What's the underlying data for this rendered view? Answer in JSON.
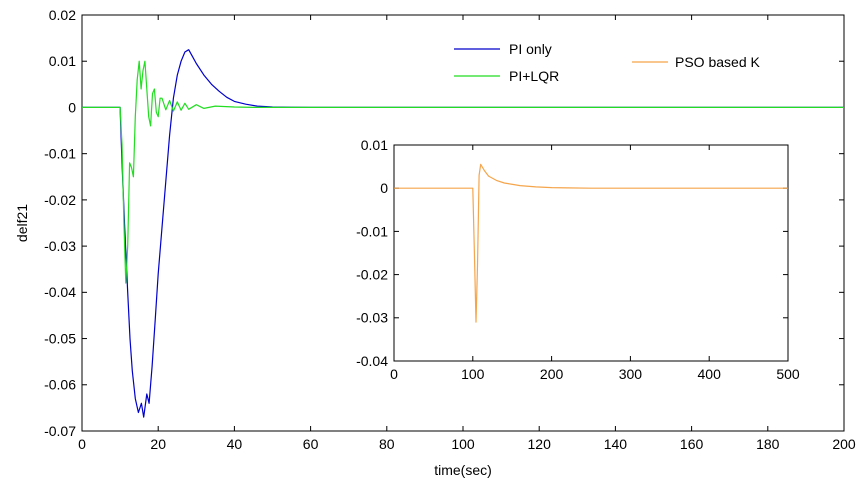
{
  "chart_data": [
    {
      "type": "line",
      "title": "",
      "xlabel": "time(sec)",
      "ylabel": "delf21",
      "xlim": [
        0,
        200
      ],
      "ylim": [
        -0.07,
        0.02
      ],
      "xticks": [
        0,
        20,
        40,
        60,
        80,
        100,
        120,
        140,
        160,
        180,
        200
      ],
      "yticks": [
        -0.07,
        -0.06,
        -0.05,
        -0.04,
        -0.03,
        -0.02,
        -0.01,
        0,
        0.01,
        0.02
      ],
      "xtick_labels": [
        "0",
        "20",
        "40",
        "60",
        "80",
        "100",
        "120",
        "140",
        "160",
        "180",
        "200"
      ],
      "ytick_labels": [
        "-0.07",
        "-0.06",
        "-0.05",
        "-0.04",
        "-0.03",
        "-0.02",
        "-0.01",
        "0",
        "0.01",
        "0.02"
      ],
      "grid": false,
      "legend": "top-right",
      "series": [
        {
          "name": "PI only",
          "color": "#0000cc",
          "x": [
            0,
            10,
            10.5,
            11.2,
            12,
            12.6,
            13.2,
            14,
            14.8,
            15.6,
            16.2,
            17,
            17.6,
            18.4,
            19.2,
            20,
            21,
            22,
            23,
            24,
            25,
            26,
            27,
            28,
            29,
            30,
            32,
            34,
            36,
            38,
            40,
            43,
            46,
            50,
            55,
            60,
            200
          ],
          "values": [
            0,
            0,
            -0.012,
            -0.026,
            -0.04,
            -0.05,
            -0.057,
            -0.063,
            -0.066,
            -0.064,
            -0.067,
            -0.062,
            -0.064,
            -0.056,
            -0.046,
            -0.036,
            -0.026,
            -0.016,
            -0.006,
            0.002,
            0.007,
            0.01,
            0.012,
            0.0125,
            0.011,
            0.0095,
            0.007,
            0.005,
            0.0035,
            0.0022,
            0.0013,
            0.0007,
            0.0003,
            0.0001,
            5e-05,
            0,
            0
          ]
        },
        {
          "name": "PI+LQR",
          "color": "#22dd22",
          "x": [
            0,
            10,
            10.5,
            11,
            11.5,
            12,
            12.5,
            13,
            13.5,
            14,
            14.5,
            15,
            15.5,
            16,
            16.5,
            17,
            17.5,
            18,
            18.5,
            19,
            19.5,
            20,
            20.5,
            21,
            22,
            23,
            24,
            25,
            26,
            27,
            28,
            30,
            32,
            35,
            40,
            45,
            200
          ],
          "values": [
            0,
            0,
            -0.008,
            -0.025,
            -0.038,
            -0.03,
            -0.012,
            -0.013,
            -0.015,
            -0.002,
            0.006,
            0.01,
            0.004,
            0.008,
            0.01,
            0.004,
            -0.002,
            -0.004,
            0.003,
            0.004,
            -0.001,
            -0.002,
            0.002,
            0.002,
            -0.0005,
            0.0015,
            -0.0008,
            0.0012,
            -0.0006,
            0.0009,
            -0.0004,
            0.0006,
            -0.0002,
            0.0003,
            0.0001,
            0,
            0
          ]
        }
      ]
    },
    {
      "type": "line",
      "title": "",
      "xlabel": "",
      "ylabel": "",
      "xlim": [
        0,
        500
      ],
      "ylim": [
        -0.04,
        0.01
      ],
      "xticks": [
        0,
        100,
        200,
        300,
        400,
        500
      ],
      "yticks": [
        -0.04,
        -0.03,
        -0.02,
        -0.01,
        0,
        0.01
      ],
      "xtick_labels": [
        "0",
        "100",
        "200",
        "300",
        "400",
        "500"
      ],
      "ytick_labels": [
        "-0.04",
        "-0.03",
        "-0.02",
        "-0.01",
        "0",
        "0.01"
      ],
      "grid": false,
      "legend": "top-right",
      "series": [
        {
          "name": "PSO based K",
          "color": "#f5a54b",
          "x": [
            0,
            100,
            102,
            104,
            106,
            108,
            110,
            115,
            120,
            130,
            140,
            160,
            180,
            200,
            220,
            250,
            500
          ],
          "values": [
            0,
            0,
            -0.015,
            -0.031,
            -0.018,
            0.003,
            0.0055,
            0.004,
            0.0028,
            0.0018,
            0.0012,
            0.0006,
            0.0003,
            0.00015,
            8e-05,
            0,
            0
          ]
        }
      ]
    }
  ]
}
